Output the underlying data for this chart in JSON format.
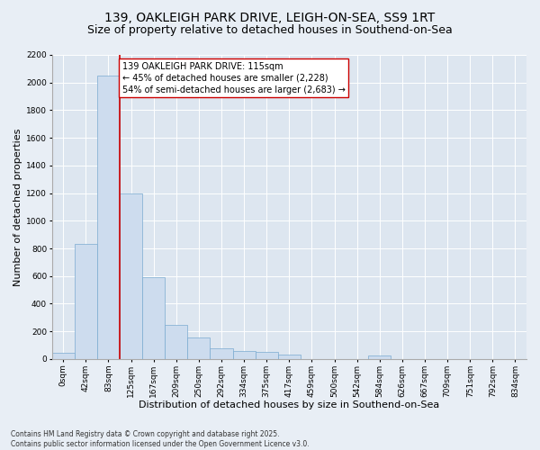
{
  "title_line1": "139, OAKLEIGH PARK DRIVE, LEIGH-ON-SEA, SS9 1RT",
  "title_line2": "Size of property relative to detached houses in Southend-on-Sea",
  "xlabel": "Distribution of detached houses by size in Southend-on-Sea",
  "ylabel": "Number of detached properties",
  "bar_labels": [
    "0sqm",
    "42sqm",
    "83sqm",
    "125sqm",
    "167sqm",
    "209sqm",
    "250sqm",
    "292sqm",
    "334sqm",
    "375sqm",
    "417sqm",
    "459sqm",
    "500sqm",
    "542sqm",
    "584sqm",
    "626sqm",
    "667sqm",
    "709sqm",
    "751sqm",
    "792sqm",
    "834sqm"
  ],
  "bar_values": [
    45,
    830,
    2050,
    1200,
    595,
    250,
    155,
    75,
    55,
    50,
    30,
    0,
    0,
    0,
    25,
    0,
    0,
    0,
    0,
    0,
    0
  ],
  "bin_width": 42,
  "bar_color": "#cddcee",
  "bar_edge_color": "#7aaad0",
  "vline_x": 2,
  "vline_color": "#cc0000",
  "annotation_text": "139 OAKLEIGH PARK DRIVE: 115sqm\n← 45% of detached houses are smaller (2,228)\n54% of semi-detached houses are larger (2,683) →",
  "annotation_box_facecolor": "#ffffff",
  "annotation_box_edgecolor": "#cc0000",
  "ylim": [
    0,
    2200
  ],
  "yticks": [
    0,
    200,
    400,
    600,
    800,
    1000,
    1200,
    1400,
    1600,
    1800,
    2000,
    2200
  ],
  "plot_bg_color": "#dde6f0",
  "fig_bg_color": "#e8eef5",
  "footer_text": "Contains HM Land Registry data © Crown copyright and database right 2025.\nContains public sector information licensed under the Open Government Licence v3.0.",
  "title_fontsize": 10,
  "subtitle_fontsize": 9,
  "axis_label_fontsize": 8,
  "tick_fontsize": 6.5,
  "annotation_fontsize": 7,
  "footer_fontsize": 5.5
}
